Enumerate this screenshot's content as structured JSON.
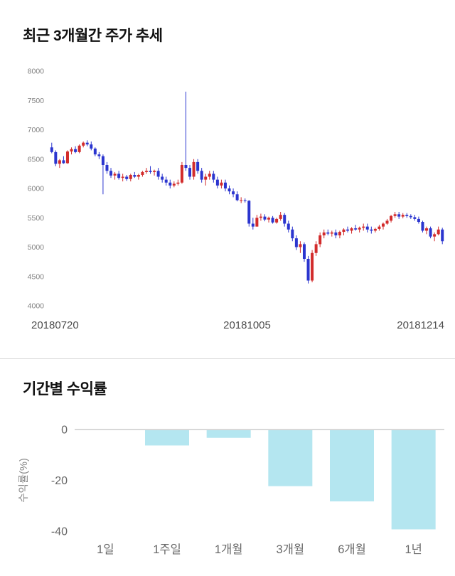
{
  "chart_data": [
    {
      "type": "candlestick",
      "title": "최근 3개월간 주가 추세",
      "ylim": [
        4000,
        8000
      ],
      "yticks": [
        8000,
        7500,
        7000,
        6500,
        6000,
        5500,
        5000,
        4500,
        4000
      ],
      "xticks": [
        "20180720",
        "20181005",
        "20181214"
      ],
      "up_color": "#d22b2b",
      "down_color": "#2b35cf",
      "grid": "off",
      "candles": [
        [
          6700,
          6780,
          6600,
          6620
        ],
        [
          6620,
          6650,
          6380,
          6420
        ],
        [
          6420,
          6500,
          6350,
          6480
        ],
        [
          6480,
          6550,
          6420,
          6430
        ],
        [
          6430,
          6650,
          6420,
          6630
        ],
        [
          6630,
          6700,
          6580,
          6670
        ],
        [
          6670,
          6720,
          6600,
          6620
        ],
        [
          6620,
          6750,
          6600,
          6730
        ],
        [
          6730,
          6800,
          6700,
          6780
        ],
        [
          6780,
          6820,
          6720,
          6750
        ],
        [
          6750,
          6800,
          6650,
          6680
        ],
        [
          6680,
          6700,
          6550,
          6580
        ],
        [
          6580,
          6620,
          6500,
          6550
        ],
        [
          6550,
          6580,
          5900,
          6400
        ],
        [
          6400,
          6450,
          6250,
          6300
        ],
        [
          6300,
          6350,
          6180,
          6220
        ],
        [
          6220,
          6280,
          6150,
          6250
        ],
        [
          6250,
          6300,
          6150,
          6180
        ],
        [
          6180,
          6250,
          6120,
          6200
        ],
        [
          6200,
          6230,
          6130,
          6160
        ],
        [
          6160,
          6250,
          6120,
          6230
        ],
        [
          6230,
          6280,
          6180,
          6200
        ],
        [
          6200,
          6250,
          6150,
          6230
        ],
        [
          6230,
          6300,
          6200,
          6280
        ],
        [
          6280,
          6350,
          6250,
          6300
        ],
        [
          6300,
          6380,
          6250,
          6280
        ],
        [
          6280,
          6320,
          6220,
          6300
        ],
        [
          6300,
          6350,
          6150,
          6200
        ],
        [
          6200,
          6250,
          6100,
          6150
        ],
        [
          6150,
          6200,
          6050,
          6100
        ],
        [
          6100,
          6150,
          6000,
          6050
        ],
        [
          6050,
          6120,
          6020,
          6080
        ],
        [
          6080,
          6150,
          6050,
          6100
        ],
        [
          6100,
          6450,
          6080,
          6400
        ],
        [
          6400,
          7650,
          6300,
          6350
        ],
        [
          6350,
          6400,
          6150,
          6200
        ],
        [
          6200,
          6500,
          6150,
          6450
        ],
        [
          6450,
          6500,
          6250,
          6300
        ],
        [
          6300,
          6350,
          6100,
          6150
        ],
        [
          6150,
          6250,
          6050,
          6200
        ],
        [
          6200,
          6300,
          6150,
          6250
        ],
        [
          6250,
          6300,
          6100,
          6150
        ],
        [
          6150,
          6200,
          6000,
          6050
        ],
        [
          6050,
          6150,
          6000,
          6100
        ],
        [
          6100,
          6150,
          5950,
          6000
        ],
        [
          6000,
          6050,
          5900,
          5950
        ],
        [
          5950,
          6000,
          5850,
          5900
        ],
        [
          5900,
          5950,
          5780,
          5800
        ],
        [
          5800,
          5850,
          5750,
          5800
        ],
        [
          5800,
          5830,
          5760,
          5790
        ],
        [
          5790,
          5800,
          5350,
          5400
        ],
        [
          5400,
          5500,
          5300,
          5350
        ],
        [
          5350,
          5550,
          5350,
          5500
        ],
        [
          5500,
          5570,
          5450,
          5520
        ],
        [
          5520,
          5560,
          5440,
          5470
        ],
        [
          5470,
          5520,
          5420,
          5500
        ],
        [
          5500,
          5530,
          5400,
          5420
        ],
        [
          5420,
          5500,
          5400,
          5480
        ],
        [
          5480,
          5600,
          5450,
          5550
        ],
        [
          5550,
          5580,
          5350,
          5400
        ],
        [
          5400,
          5450,
          5250,
          5300
        ],
        [
          5300,
          5350,
          5100,
          5150
        ],
        [
          5150,
          5200,
          4950,
          5000
        ],
        [
          5000,
          5100,
          4900,
          5050
        ],
        [
          5050,
          5080,
          4750,
          4800
        ],
        [
          4800,
          4850,
          4380,
          4430
        ],
        [
          4430,
          4950,
          4400,
          4900
        ],
        [
          4900,
          5100,
          4850,
          5050
        ],
        [
          5050,
          5250,
          5000,
          5200
        ],
        [
          5200,
          5300,
          5150,
          5250
        ],
        [
          5250,
          5300,
          5200,
          5230
        ],
        [
          5230,
          5280,
          5180,
          5250
        ],
        [
          5250,
          5300,
          5150,
          5200
        ],
        [
          5200,
          5280,
          5150,
          5260
        ],
        [
          5260,
          5320,
          5200,
          5300
        ],
        [
          5300,
          5350,
          5250,
          5280
        ],
        [
          5280,
          5340,
          5230,
          5320
        ],
        [
          5320,
          5380,
          5280,
          5300
        ],
        [
          5300,
          5350,
          5250,
          5330
        ],
        [
          5330,
          5400,
          5280,
          5350
        ],
        [
          5350,
          5400,
          5250,
          5300
        ],
        [
          5300,
          5350,
          5230,
          5280
        ],
        [
          5280,
          5330,
          5250,
          5310
        ],
        [
          5310,
          5380,
          5280,
          5350
        ],
        [
          5350,
          5420,
          5300,
          5400
        ],
        [
          5400,
          5480,
          5380,
          5450
        ],
        [
          5450,
          5550,
          5420,
          5530
        ],
        [
          5530,
          5600,
          5500,
          5560
        ],
        [
          5560,
          5600,
          5480,
          5520
        ],
        [
          5520,
          5580,
          5490,
          5550
        ],
        [
          5550,
          5580,
          5500,
          5530
        ],
        [
          5530,
          5560,
          5480,
          5510
        ],
        [
          5510,
          5550,
          5450,
          5480
        ],
        [
          5480,
          5520,
          5400,
          5430
        ],
        [
          5430,
          5450,
          5250,
          5280
        ],
        [
          5280,
          5350,
          5220,
          5320
        ],
        [
          5320,
          5350,
          5150,
          5180
        ],
        [
          5180,
          5250,
          5100,
          5220
        ],
        [
          5220,
          5350,
          5200,
          5300
        ],
        [
          5300,
          5330,
          5050,
          5100
        ]
      ]
    },
    {
      "type": "bar",
      "title": "기간별 수익률",
      "ylabel": "수익률(%)",
      "categories": [
        "1일",
        "1주일",
        "1개월",
        "3개월",
        "6개월",
        "1년"
      ],
      "values": [
        0,
        -6,
        -3,
        -22,
        -28,
        -39
      ],
      "yticks": [
        0,
        -20,
        -40
      ],
      "ylim": [
        -40,
        0
      ],
      "bar_color": "#b4e6f0",
      "axis_color": "#cccccc",
      "grid": "off",
      "legend": "none"
    }
  ]
}
